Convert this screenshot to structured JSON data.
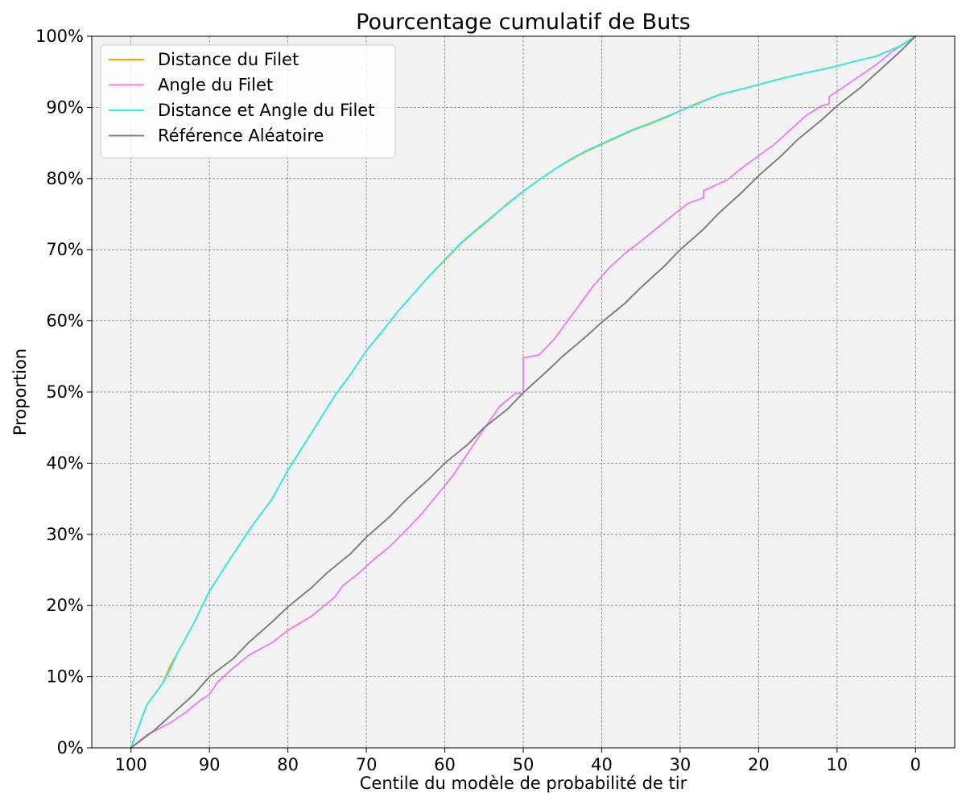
{
  "chart_data": {
    "type": "line",
    "title": "Pourcentage cumulatif de Buts",
    "xlabel": "Centile du modèle de probabilité de tir",
    "ylabel": "Proportion",
    "xlim": [
      105,
      -5
    ],
    "ylim": [
      0,
      100
    ],
    "x_reversed": true,
    "xticks": [
      100,
      90,
      80,
      70,
      60,
      50,
      40,
      30,
      20,
      10,
      0
    ],
    "yticks": [
      0,
      10,
      20,
      30,
      40,
      50,
      60,
      70,
      80,
      90,
      100
    ],
    "ytick_format": "percent",
    "grid": true,
    "legend_position": "upper-left",
    "background_color": "#f2f2f2",
    "series": [
      {
        "name": "Distance du Filet",
        "color": "#ffa500",
        "x": [
          100,
          98,
          96,
          95,
          94,
          92,
          90,
          88,
          85,
          82,
          80,
          78,
          76,
          74,
          72,
          70,
          68,
          66,
          64,
          62,
          60,
          58,
          56,
          54,
          52,
          50,
          48,
          46,
          44,
          42,
          40,
          38,
          36,
          34,
          32,
          30,
          28,
          25,
          22,
          20,
          18,
          15,
          12,
          10,
          8,
          5,
          2,
          0
        ],
        "y": [
          0,
          6,
          9,
          11.5,
          13.5,
          17.5,
          22,
          25.5,
          30.5,
          35,
          39,
          42.5,
          46,
          49.5,
          52.5,
          55.8,
          58.5,
          61.3,
          63.8,
          66.3,
          68.5,
          70.8,
          72.7,
          74.5,
          76.5,
          78.2,
          79.8,
          81.3,
          82.6,
          83.8,
          84.8,
          85.8,
          86.8,
          87.6,
          88.5,
          89.5,
          90.5,
          91.8,
          92.6,
          93.2,
          93.8,
          94.6,
          95.3,
          95.8,
          96.4,
          97.2,
          98.6,
          100
        ]
      },
      {
        "name": "Angle du Filet",
        "color": "#ee82ee",
        "x": [
          100,
          98,
          95,
          93,
          91,
          90,
          89,
          87,
          85,
          82,
          80,
          77,
          74,
          73,
          71,
          69,
          67,
          65,
          63,
          61,
          59,
          57,
          55,
          53,
          51,
          50,
          50,
          48,
          46,
          45,
          43,
          41,
          39,
          37,
          35,
          33,
          31,
          29,
          27,
          27,
          24,
          22,
          20,
          18,
          16,
          14,
          12,
          11,
          11,
          9,
          7,
          5,
          3,
          0
        ],
        "y": [
          0,
          1.8,
          3.5,
          5,
          6.8,
          7.5,
          9.2,
          11.2,
          13,
          14.8,
          16.5,
          18.5,
          21.2,
          22.8,
          24.5,
          26.5,
          28.3,
          30.5,
          32.8,
          35.5,
          38.2,
          41.5,
          44.8,
          48,
          49.8,
          49.8,
          54.8,
          55.2,
          57.5,
          59,
          62,
          65,
          67.5,
          69.5,
          71.2,
          73,
          74.8,
          76.5,
          77.3,
          78.3,
          79.8,
          81.6,
          83.2,
          84.8,
          86.8,
          88.8,
          90.2,
          90.5,
          91.5,
          93,
          94.5,
          96,
          97.8,
          100
        ]
      },
      {
        "name": "Distance et Angle du Filet",
        "color": "#33eee8",
        "x": [
          100,
          98,
          96,
          95,
          94,
          92,
          90,
          88,
          85,
          82,
          80,
          78,
          76,
          74,
          72,
          70,
          68,
          66,
          64,
          62,
          60,
          58,
          56,
          54,
          52,
          50,
          48,
          46,
          44,
          42,
          40,
          38,
          36,
          34,
          32,
          30,
          28,
          25,
          22,
          20,
          18,
          15,
          12,
          10,
          8,
          5,
          2,
          0
        ],
        "y": [
          0,
          6,
          9,
          11,
          13.5,
          17.5,
          22,
          25.5,
          30.5,
          35,
          39,
          42.5,
          46,
          49.5,
          52.5,
          55.8,
          58.5,
          61.3,
          63.8,
          66.3,
          68.6,
          70.9,
          72.8,
          74.6,
          76.4,
          78.2,
          79.8,
          81.3,
          82.7,
          83.9,
          84.9,
          85.9,
          86.9,
          87.7,
          88.6,
          89.5,
          90.4,
          91.8,
          92.6,
          93.2,
          93.8,
          94.6,
          95.3,
          95.8,
          96.4,
          97.2,
          98.6,
          100
        ]
      },
      {
        "name": "Référence Aléatoire",
        "color": "#808080",
        "x": [
          100,
          97,
          95,
          92,
          90,
          87,
          85,
          82,
          80,
          77,
          75,
          72,
          70,
          67,
          65,
          62,
          60,
          57,
          55,
          52,
          50,
          47,
          45,
          42,
          40,
          37,
          35,
          32,
          30,
          27,
          25,
          22,
          20,
          17,
          15,
          12,
          10,
          7,
          5,
          2,
          0
        ],
        "y": [
          0,
          2.5,
          4.5,
          7.5,
          10,
          12.5,
          14.8,
          17.7,
          19.8,
          22.5,
          24.6,
          27.3,
          29.6,
          32.5,
          34.8,
          37.8,
          40,
          42.7,
          45,
          47.6,
          49.9,
          52.9,
          55,
          57.8,
          59.8,
          62.5,
          64.7,
          67.7,
          70,
          72.9,
          75.2,
          78.2,
          80.4,
          83.3,
          85.5,
          88.2,
          90.2,
          92.8,
          94.8,
          97.8,
          100
        ]
      }
    ]
  }
}
